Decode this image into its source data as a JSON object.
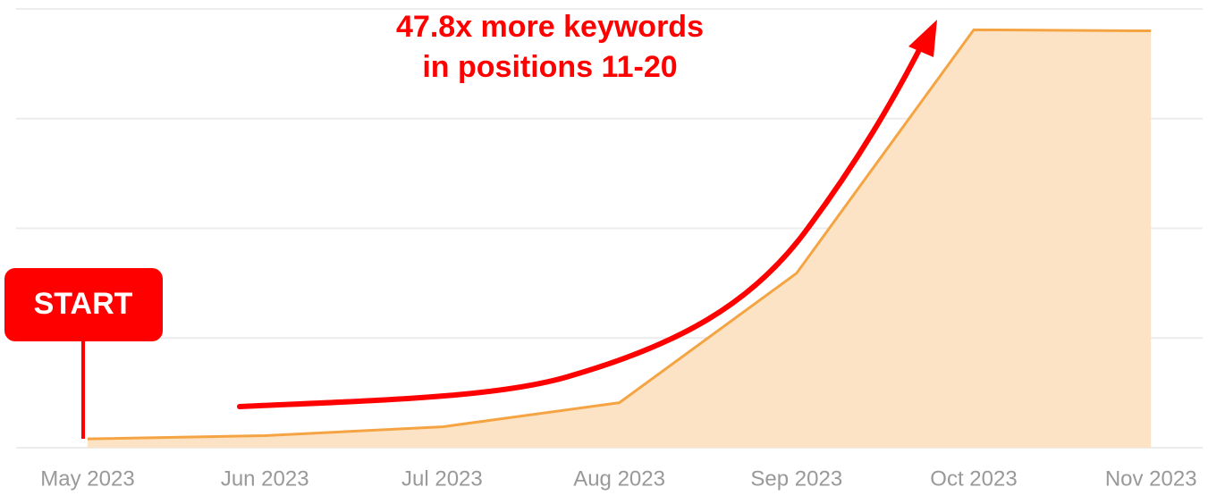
{
  "chart_data": {
    "type": "area",
    "annotations": [
      "47.8x more keywords",
      "in positions 11-20",
      "START"
    ],
    "categories": [
      "May 2023",
      "Jun 2023",
      "Jul 2023",
      "Aug 2023",
      "Sep 2023",
      "Oct 2023",
      "Nov 2023"
    ],
    "values": [
      0.08,
      0.11,
      0.19,
      0.41,
      1.59,
      3.81,
      3.8
    ],
    "color": "#f5a443",
    "fill_color": "#fde3c5",
    "ylim": [
      0,
      4
    ],
    "yticks": [
      0,
      1,
      2,
      3,
      4
    ],
    "grid": true
  }
}
